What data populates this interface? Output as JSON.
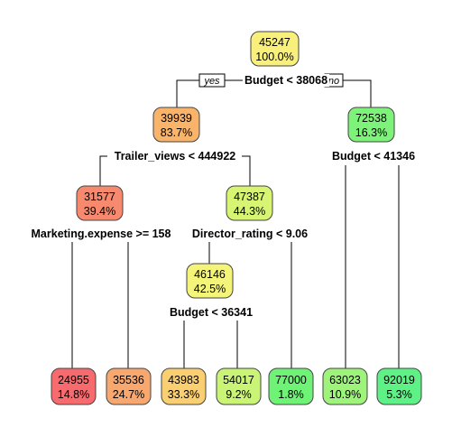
{
  "tree": {
    "labels": {
      "yes": "yes",
      "no": "no"
    },
    "nodes": [
      {
        "id": "n1",
        "value": "45247",
        "percent": "100.0%",
        "fill": "#f8f07a",
        "split": "Budget < 38068"
      },
      {
        "id": "n2",
        "value": "39939",
        "percent": "83.7%",
        "fill": "#f9b46a",
        "split": "Trailer_views < 444922"
      },
      {
        "id": "n3",
        "value": "72538",
        "percent": "16.3%",
        "fill": "#7ef37a",
        "split": "Budget < 41346"
      },
      {
        "id": "n4",
        "value": "31577",
        "percent": "39.4%",
        "fill": "#f78a6e",
        "split": "Marketing.expense >= 158"
      },
      {
        "id": "n5",
        "value": "47387",
        "percent": "44.3%",
        "fill": "#d7f472",
        "split": "Director_rating < 9.06"
      },
      {
        "id": "n10",
        "value": "46146",
        "percent": "42.5%",
        "fill": "#f4f47a",
        "split": "Budget < 36341"
      },
      {
        "id": "n8",
        "value": "24955",
        "percent": "14.8%",
        "fill": "#f76a6e",
        "split": ""
      },
      {
        "id": "n9",
        "value": "35536",
        "percent": "24.7%",
        "fill": "#f8a86e",
        "split": ""
      },
      {
        "id": "n20",
        "value": "43983",
        "percent": "33.3%",
        "fill": "#f9cf72",
        "split": ""
      },
      {
        "id": "n21",
        "value": "54017",
        "percent": "9.2%",
        "fill": "#c9f476",
        "split": ""
      },
      {
        "id": "n11",
        "value": "77000",
        "percent": "1.8%",
        "fill": "#6ef376",
        "split": ""
      },
      {
        "id": "n6",
        "value": "63023",
        "percent": "10.9%",
        "fill": "#9ef47a",
        "split": ""
      },
      {
        "id": "n7",
        "value": "92019",
        "percent": "5.3%",
        "fill": "#5ef286",
        "split": ""
      }
    ]
  }
}
